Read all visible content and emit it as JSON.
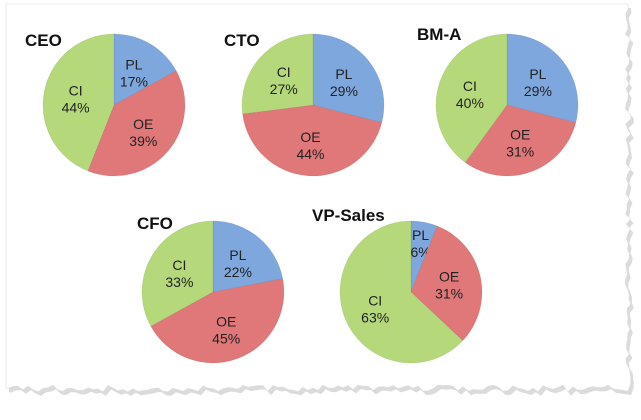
{
  "colors": {
    "PL": "#7ea7dd",
    "OE": "#e0787a",
    "CI": "#b5d97a",
    "paper_shadow": "#bdbdbd"
  },
  "chart_data": [
    {
      "type": "pie",
      "title": "CEO",
      "slices": [
        {
          "label": "PL",
          "value": 17
        },
        {
          "label": "OE",
          "value": 39
        },
        {
          "label": "CI",
          "value": 44
        }
      ]
    },
    {
      "type": "pie",
      "title": "CTO",
      "slices": [
        {
          "label": "PL",
          "value": 29
        },
        {
          "label": "OE",
          "value": 44
        },
        {
          "label": "CI",
          "value": 27
        }
      ]
    },
    {
      "type": "pie",
      "title": "BM-A",
      "slices": [
        {
          "label": "PL",
          "value": 29
        },
        {
          "label": "OE",
          "value": 31
        },
        {
          "label": "CI",
          "value": 40
        }
      ]
    },
    {
      "type": "pie",
      "title": "CFO",
      "slices": [
        {
          "label": "PL",
          "value": 22
        },
        {
          "label": "OE",
          "value": 45
        },
        {
          "label": "CI",
          "value": 33
        }
      ]
    },
    {
      "type": "pie",
      "title": "VP-Sales",
      "slices": [
        {
          "label": "PL",
          "value": 6
        },
        {
          "label": "OE",
          "value": 31
        },
        {
          "label": "CI",
          "value": 63
        }
      ]
    }
  ]
}
